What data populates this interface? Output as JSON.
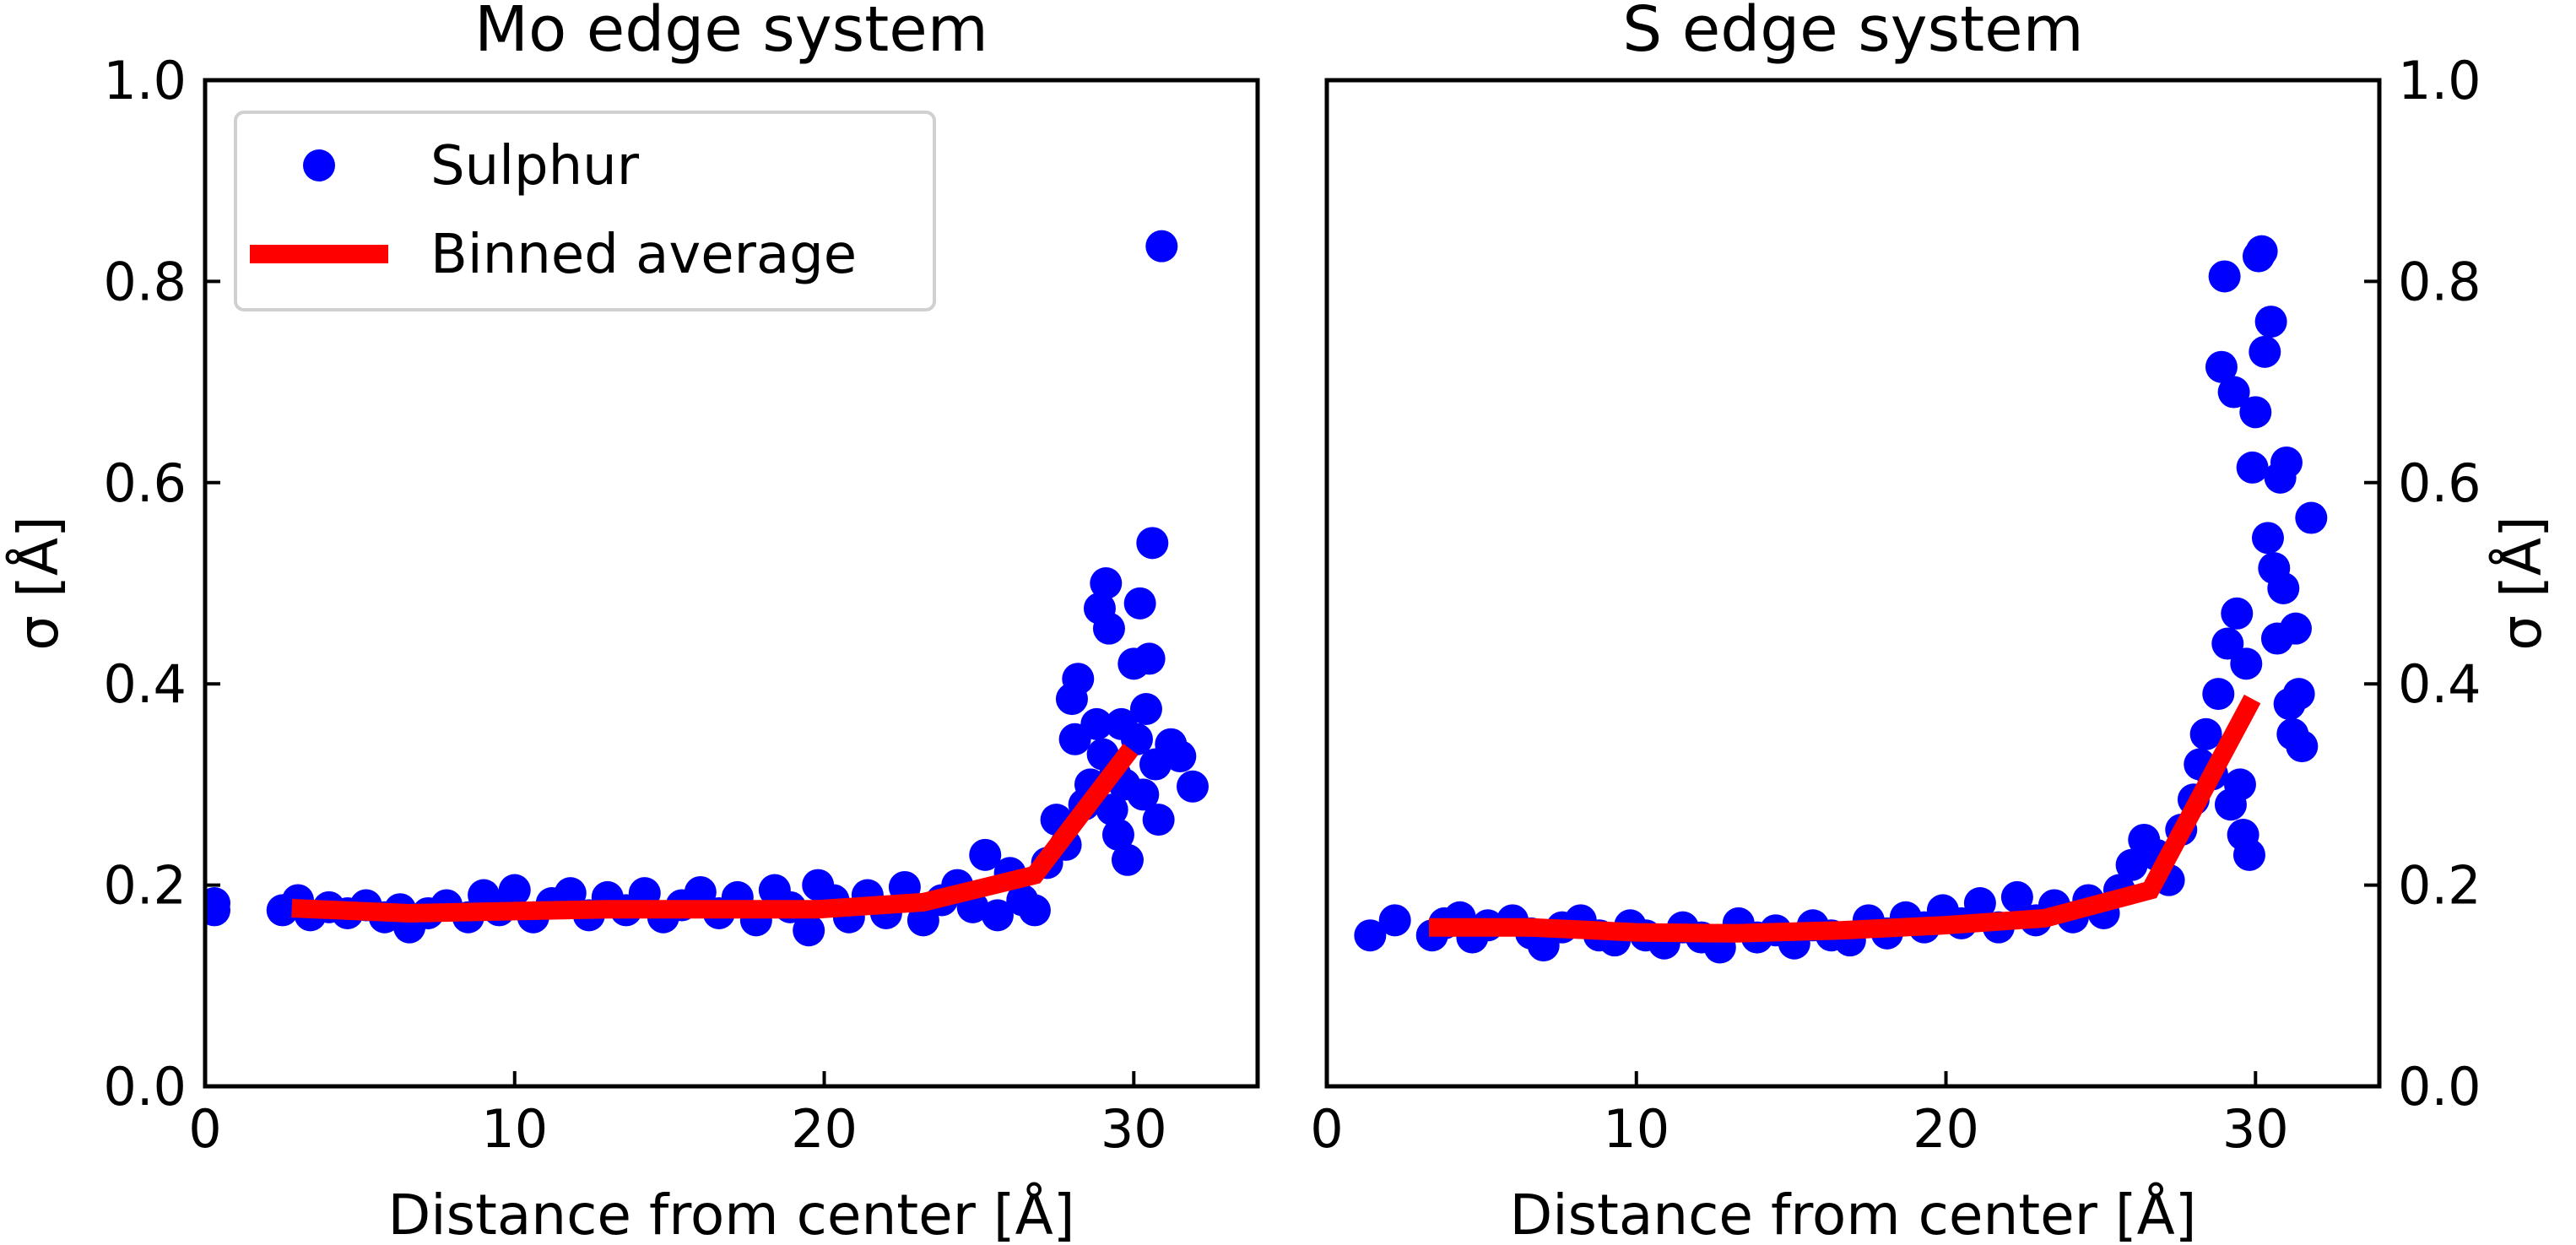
{
  "chart_data": [
    {
      "type": "scatter",
      "title": "Mo edge system",
      "xlabel": "Distance from center [Å]",
      "ylabel": "σ [Å]",
      "xlim": [
        0,
        34
      ],
      "ylim": [
        0.0,
        1.0
      ],
      "xticks": [
        0,
        10,
        20,
        30
      ],
      "yticks": [
        0.0,
        0.2,
        0.4,
        0.6,
        0.8,
        1.0
      ],
      "xtick_labels": [
        "0",
        "10",
        "20",
        "30"
      ],
      "ytick_labels": [
        "0.0",
        "0.2",
        "0.4",
        "0.6",
        "0.8",
        "1.0"
      ],
      "ytick_side": "left",
      "legend": {
        "position": "top-left",
        "entries": [
          {
            "label": "Sulphur",
            "kind": "marker"
          },
          {
            "label": "Binned average",
            "kind": "line"
          }
        ]
      },
      "series": [
        {
          "name": "Sulphur",
          "kind": "scatter",
          "color": "#0000ff",
          "points": [
            [
              0.3,
              0.175
            ],
            [
              0.3,
              0.182
            ],
            [
              2.5,
              0.175
            ],
            [
              3.0,
              0.185
            ],
            [
              3.4,
              0.17
            ],
            [
              4.0,
              0.178
            ],
            [
              4.6,
              0.172
            ],
            [
              5.2,
              0.18
            ],
            [
              5.8,
              0.168
            ],
            [
              6.3,
              0.176
            ],
            [
              6.6,
              0.158
            ],
            [
              7.2,
              0.172
            ],
            [
              7.8,
              0.18
            ],
            [
              8.5,
              0.168
            ],
            [
              9.0,
              0.19
            ],
            [
              9.5,
              0.175
            ],
            [
              10.0,
              0.195
            ],
            [
              10.6,
              0.168
            ],
            [
              11.2,
              0.182
            ],
            [
              11.8,
              0.192
            ],
            [
              12.4,
              0.17
            ],
            [
              13.0,
              0.188
            ],
            [
              13.6,
              0.175
            ],
            [
              14.2,
              0.192
            ],
            [
              14.8,
              0.168
            ],
            [
              15.4,
              0.18
            ],
            [
              16.0,
              0.193
            ],
            [
              16.6,
              0.172
            ],
            [
              17.2,
              0.188
            ],
            [
              17.8,
              0.165
            ],
            [
              18.4,
              0.195
            ],
            [
              18.9,
              0.178
            ],
            [
              19.5,
              0.155
            ],
            [
              19.8,
              0.2
            ],
            [
              20.3,
              0.185
            ],
            [
              20.8,
              0.168
            ],
            [
              21.4,
              0.19
            ],
            [
              22.0,
              0.172
            ],
            [
              22.6,
              0.198
            ],
            [
              23.2,
              0.165
            ],
            [
              23.8,
              0.185
            ],
            [
              24.3,
              0.2
            ],
            [
              24.8,
              0.178
            ],
            [
              25.2,
              0.23
            ],
            [
              25.6,
              0.17
            ],
            [
              26.0,
              0.212
            ],
            [
              26.4,
              0.185
            ],
            [
              26.8,
              0.175
            ],
            [
              27.2,
              0.222
            ],
            [
              27.5,
              0.265
            ],
            [
              27.8,
              0.24
            ],
            [
              28.0,
              0.385
            ],
            [
              28.1,
              0.345
            ],
            [
              28.2,
              0.405
            ],
            [
              28.4,
              0.28
            ],
            [
              28.6,
              0.3
            ],
            [
              28.8,
              0.36
            ],
            [
              28.9,
              0.475
            ],
            [
              29.0,
              0.33
            ],
            [
              29.1,
              0.5
            ],
            [
              29.2,
              0.455
            ],
            [
              29.3,
              0.275
            ],
            [
              29.4,
              0.31
            ],
            [
              29.5,
              0.25
            ],
            [
              29.6,
              0.36
            ],
            [
              29.7,
              0.3
            ],
            [
              29.8,
              0.225
            ],
            [
              30.0,
              0.42
            ],
            [
              30.1,
              0.345
            ],
            [
              30.2,
              0.48
            ],
            [
              30.3,
              0.29
            ],
            [
              30.4,
              0.375
            ],
            [
              30.5,
              0.425
            ],
            [
              30.6,
              0.54
            ],
            [
              30.7,
              0.32
            ],
            [
              30.8,
              0.265
            ],
            [
              30.9,
              0.835
            ],
            [
              31.2,
              0.34
            ],
            [
              31.5,
              0.328
            ],
            [
              31.9,
              0.298
            ]
          ]
        },
        {
          "name": "Binned average",
          "kind": "line",
          "color": "#ff0000",
          "points": [
            [
              2.8,
              0.177
            ],
            [
              6.6,
              0.172
            ],
            [
              13.0,
              0.176
            ],
            [
              19.8,
              0.176
            ],
            [
              23.2,
              0.183
            ],
            [
              26.8,
              0.21
            ],
            [
              29.9,
              0.335
            ]
          ]
        }
      ]
    },
    {
      "type": "scatter",
      "title": "S edge system",
      "xlabel": "Distance from center [Å]",
      "ylabel": "σ [Å]",
      "xlim": [
        0,
        34
      ],
      "ylim": [
        0.0,
        1.0
      ],
      "xticks": [
        0,
        10,
        20,
        30
      ],
      "yticks": [
        0.0,
        0.2,
        0.4,
        0.6,
        0.8,
        1.0
      ],
      "xtick_labels": [
        "0",
        "10",
        "20",
        "30"
      ],
      "ytick_labels": [
        "0.0",
        "0.2",
        "0.4",
        "0.6",
        "0.8",
        "1.0"
      ],
      "ytick_side": "right",
      "series": [
        {
          "name": "Sulphur",
          "kind": "scatter",
          "color": "#0000ff",
          "points": [
            [
              1.4,
              0.15
            ],
            [
              2.2,
              0.165
            ],
            [
              3.4,
              0.15
            ],
            [
              3.8,
              0.162
            ],
            [
              4.3,
              0.168
            ],
            [
              4.7,
              0.148
            ],
            [
              5.2,
              0.16
            ],
            [
              6.0,
              0.165
            ],
            [
              6.6,
              0.152
            ],
            [
              7.0,
              0.14
            ],
            [
              7.6,
              0.158
            ],
            [
              8.2,
              0.165
            ],
            [
              8.8,
              0.15
            ],
            [
              9.3,
              0.145
            ],
            [
              9.8,
              0.16
            ],
            [
              10.3,
              0.15
            ],
            [
              10.9,
              0.142
            ],
            [
              11.5,
              0.158
            ],
            [
              12.1,
              0.148
            ],
            [
              12.7,
              0.138
            ],
            [
              13.3,
              0.162
            ],
            [
              13.9,
              0.148
            ],
            [
              14.5,
              0.155
            ],
            [
              15.1,
              0.142
            ],
            [
              15.7,
              0.16
            ],
            [
              16.3,
              0.15
            ],
            [
              16.9,
              0.145
            ],
            [
              17.5,
              0.165
            ],
            [
              18.1,
              0.152
            ],
            [
              18.7,
              0.168
            ],
            [
              19.3,
              0.158
            ],
            [
              19.9,
              0.175
            ],
            [
              20.5,
              0.162
            ],
            [
              21.1,
              0.182
            ],
            [
              21.7,
              0.158
            ],
            [
              22.3,
              0.188
            ],
            [
              22.9,
              0.165
            ],
            [
              23.5,
              0.18
            ],
            [
              24.1,
              0.168
            ],
            [
              24.6,
              0.185
            ],
            [
              25.1,
              0.172
            ],
            [
              25.6,
              0.195
            ],
            [
              26.0,
              0.22
            ],
            [
              26.4,
              0.245
            ],
            [
              26.8,
              0.23
            ],
            [
              27.2,
              0.205
            ],
            [
              27.6,
              0.255
            ],
            [
              28.0,
              0.285
            ],
            [
              28.2,
              0.32
            ],
            [
              28.4,
              0.35
            ],
            [
              28.6,
              0.31
            ],
            [
              28.8,
              0.39
            ],
            [
              28.9,
              0.715
            ],
            [
              29.0,
              0.805
            ],
            [
              29.1,
              0.44
            ],
            [
              29.2,
              0.28
            ],
            [
              29.3,
              0.69
            ],
            [
              29.4,
              0.47
            ],
            [
              29.5,
              0.3
            ],
            [
              29.6,
              0.25
            ],
            [
              29.7,
              0.42
            ],
            [
              29.8,
              0.23
            ],
            [
              29.9,
              0.615
            ],
            [
              30.0,
              0.67
            ],
            [
              30.1,
              0.825
            ],
            [
              30.2,
              0.83
            ],
            [
              30.3,
              0.73
            ],
            [
              30.4,
              0.545
            ],
            [
              30.5,
              0.76
            ],
            [
              30.6,
              0.515
            ],
            [
              30.7,
              0.445
            ],
            [
              30.8,
              0.605
            ],
            [
              30.9,
              0.495
            ],
            [
              31.0,
              0.62
            ],
            [
              31.1,
              0.38
            ],
            [
              31.2,
              0.35
            ],
            [
              31.3,
              0.455
            ],
            [
              31.4,
              0.39
            ],
            [
              31.5,
              0.338
            ],
            [
              31.8,
              0.565
            ]
          ]
        },
        {
          "name": "Binned average",
          "kind": "line",
          "color": "#ff0000",
          "points": [
            [
              3.3,
              0.158
            ],
            [
              6.6,
              0.158
            ],
            [
              10.0,
              0.153
            ],
            [
              13.2,
              0.152
            ],
            [
              16.6,
              0.155
            ],
            [
              19.9,
              0.16
            ],
            [
              23.2,
              0.167
            ],
            [
              26.6,
              0.195
            ],
            [
              29.9,
              0.385
            ]
          ]
        }
      ]
    }
  ]
}
